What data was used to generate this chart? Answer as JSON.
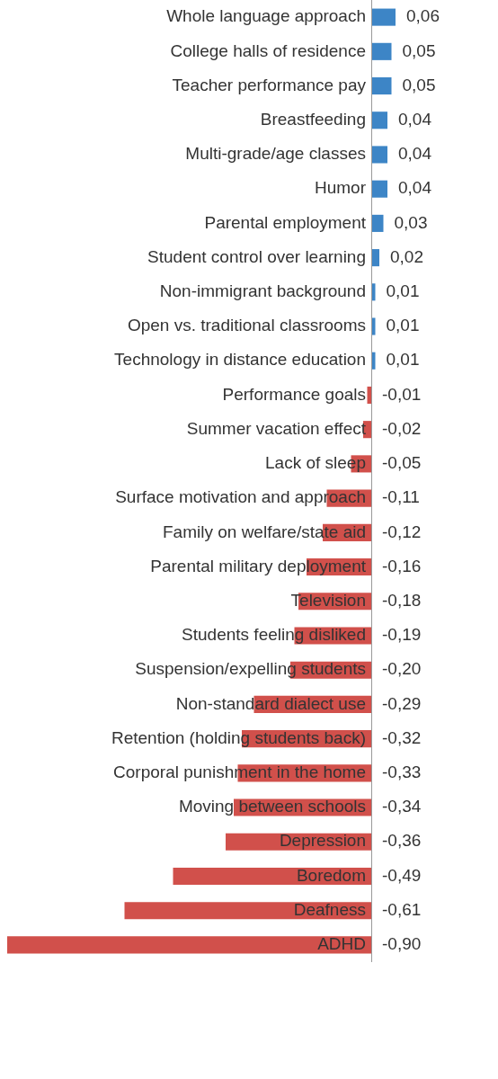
{
  "chart_data": {
    "type": "bar",
    "orientation": "horizontal",
    "categories": [
      "Whole language approach",
      "College halls of residence",
      "Teacher performance pay",
      "Breastfeeding",
      "Multi-grade/age classes",
      "Humor",
      "Parental employment",
      "Student control over learning",
      "Non-immigrant background",
      "Open vs. traditional classrooms",
      "Technology in distance education",
      "Performance goals",
      "Summer vacation effect",
      "Lack of sleep",
      "Surface motivation and approach",
      "Family on welfare/state aid",
      "Parental military deployment",
      "Television",
      "Students feeling disliked",
      "Suspension/expelling students",
      "Non-standard dialect use",
      "Retention (holding students back)",
      "Corporal punishment in the home",
      "Moving between schools",
      "Depression",
      "Boredom",
      "Deafness",
      "ADHD"
    ],
    "values": [
      0.06,
      0.05,
      0.05,
      0.04,
      0.04,
      0.04,
      0.03,
      0.02,
      0.01,
      0.01,
      0.01,
      -0.01,
      -0.02,
      -0.05,
      -0.11,
      -0.12,
      -0.16,
      -0.18,
      -0.19,
      -0.2,
      -0.29,
      -0.32,
      -0.33,
      -0.34,
      -0.36,
      -0.49,
      -0.61,
      -0.9
    ],
    "value_labels": [
      "0,06",
      "0,05",
      "0,05",
      "0,04",
      "0,04",
      "0,04",
      "0,03",
      "0,02",
      "0,01",
      "0,01",
      "0,01",
      "-0,01",
      "-0,02",
      "-0,05",
      "-0,11",
      "-0,12",
      "-0,16",
      "-0,18",
      "-0,19",
      "-0,20",
      "-0,29",
      "-0,32",
      "-0,33",
      "-0,34",
      "-0,36",
      "-0,49",
      "-0,61",
      "-0,90"
    ],
    "colors": [
      "#3d85c6",
      "#3d85c6",
      "#3d85c6",
      "#3d85c6",
      "#3d85c6",
      "#3d85c6",
      "#3d85c6",
      "#3d85c6",
      "#3d85c6",
      "#3d85c6",
      "#3d85c6",
      "#d1504b",
      "#d1504b",
      "#d1504b",
      "#d1504b",
      "#d1504b",
      "#d1504b",
      "#d1504b",
      "#d1504b",
      "#d1504b",
      "#d1504b",
      "#d1504b",
      "#d1504b",
      "#d1504b",
      "#d1504b",
      "#d1504b",
      "#d1504b",
      "#d1504b"
    ],
    "legend": false
  }
}
